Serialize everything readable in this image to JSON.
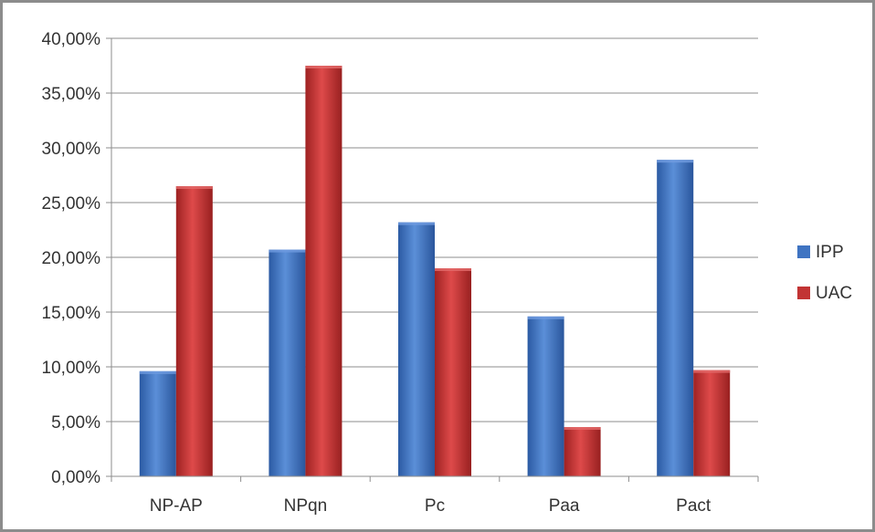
{
  "chart_data": {
    "type": "bar",
    "categories": [
      "NP-AP",
      "NPqn",
      "Pc",
      "Paa",
      "Pact"
    ],
    "series": [
      {
        "name": "IPP",
        "color": "#3f74c2",
        "values": [
          9.6,
          20.7,
          23.2,
          14.6,
          28.9
        ]
      },
      {
        "name": "UAC",
        "color": "#c23434",
        "values": [
          26.5,
          37.5,
          19.0,
          4.5,
          9.7
        ]
      }
    ],
    "ylim": [
      0,
      40
    ],
    "yticks": [
      0,
      5,
      10,
      15,
      20,
      25,
      30,
      35,
      40
    ],
    "ytick_labels": [
      "0,00%",
      "5,00%",
      "10,00%",
      "15,00%",
      "20,00%",
      "25,00%",
      "30,00%",
      "35,00%",
      "40,00%"
    ],
    "grid": true,
    "legend_position": "right",
    "title": "",
    "xlabel": "",
    "ylabel": ""
  }
}
